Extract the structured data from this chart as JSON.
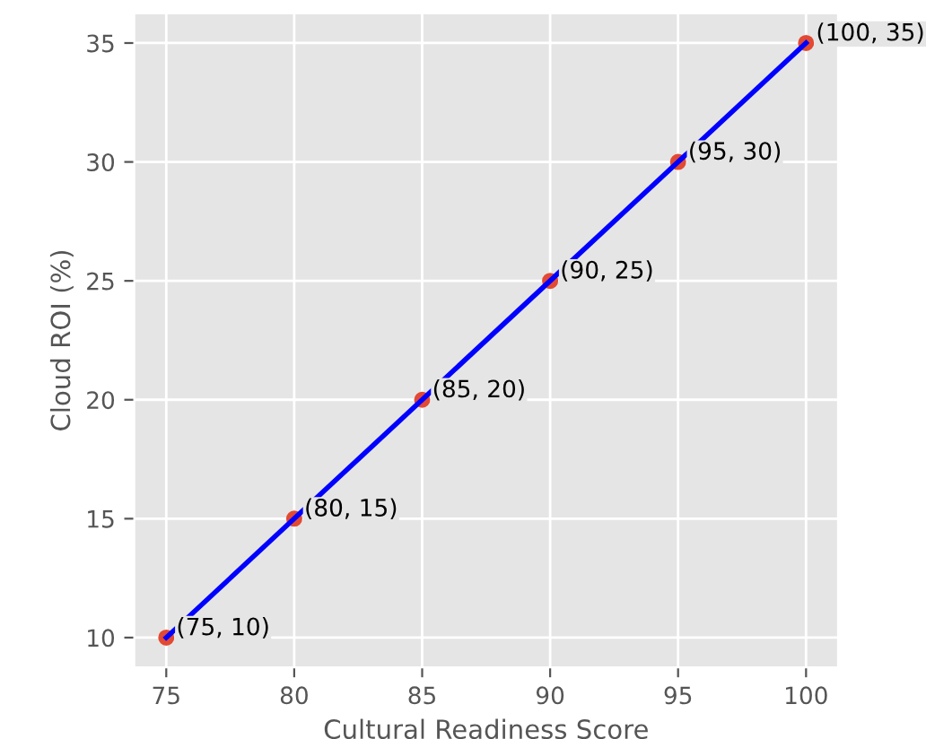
{
  "chart_data": {
    "type": "scatter",
    "xlabel": "Cultural Readiness Score",
    "ylabel": "Cloud ROI (%)",
    "x": [
      75,
      80,
      85,
      90,
      95,
      100
    ],
    "series": [
      {
        "color": "#e24a33",
        "values": [
          10,
          15,
          20,
          25,
          30,
          35
        ],
        "marker": "circle"
      },
      {
        "type": "line",
        "color": "#0000ff",
        "values": [
          10,
          15,
          20,
          25,
          30,
          35
        ],
        "marker": "none",
        "line_style": "solid"
      }
    ],
    "annotations": [
      {
        "text": "(75, 10)",
        "x": 75,
        "y": 10
      },
      {
        "text": "(80, 15)",
        "x": 80,
        "y": 15
      },
      {
        "text": "(85, 20)",
        "x": 85,
        "y": 20
      },
      {
        "text": "(90, 25)",
        "x": 90,
        "y": 25
      },
      {
        "text": "(95, 30)",
        "x": 95,
        "y": 30
      },
      {
        "text": "(100, 35)",
        "x": 100,
        "y": 35
      }
    ],
    "xlim": [
      73.75,
      101.25
    ],
    "ylim": [
      8.75,
      36.25
    ],
    "xticks": [
      75,
      80,
      85,
      90,
      95,
      100
    ],
    "yticks": [
      10,
      15,
      20,
      25,
      30,
      35
    ],
    "grid": true
  }
}
